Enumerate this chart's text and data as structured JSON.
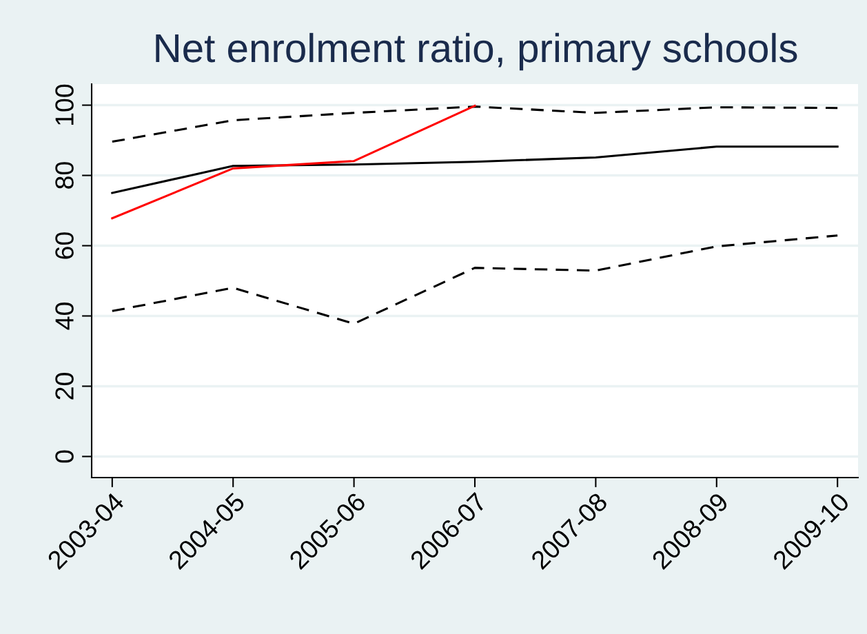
{
  "chart_data": {
    "type": "line",
    "title": "Net enrolment ratio, primary schools",
    "categories": [
      "2003-04",
      "2004-05",
      "2005-06",
      "2006-07",
      "2007-08",
      "2008-09",
      "2009-10"
    ],
    "series": [
      {
        "color": "#000000",
        "line_style": "dashed",
        "values": [
          89.6,
          95.7,
          97.8,
          99.6,
          97.8,
          99.4,
          99.2
        ]
      },
      {
        "color": "#000000",
        "line_style": "solid",
        "values": [
          75.0,
          82.7,
          83.1,
          83.9,
          85.1,
          88.2,
          88.2
        ]
      },
      {
        "color": "#ff0000",
        "line_style": "solid",
        "values": [
          67.8,
          82.0,
          84.1,
          99.8,
          null,
          null,
          null
        ]
      },
      {
        "color": "#000000",
        "line_style": "dashed",
        "values": [
          41.4,
          48.0,
          37.8,
          53.7,
          52.9,
          59.8,
          62.9
        ]
      }
    ],
    "ylim": [
      -6,
      106
    ],
    "yticks": [
      0,
      20,
      40,
      60,
      80,
      100
    ],
    "grid": "y",
    "marker": "none",
    "legend": false
  }
}
